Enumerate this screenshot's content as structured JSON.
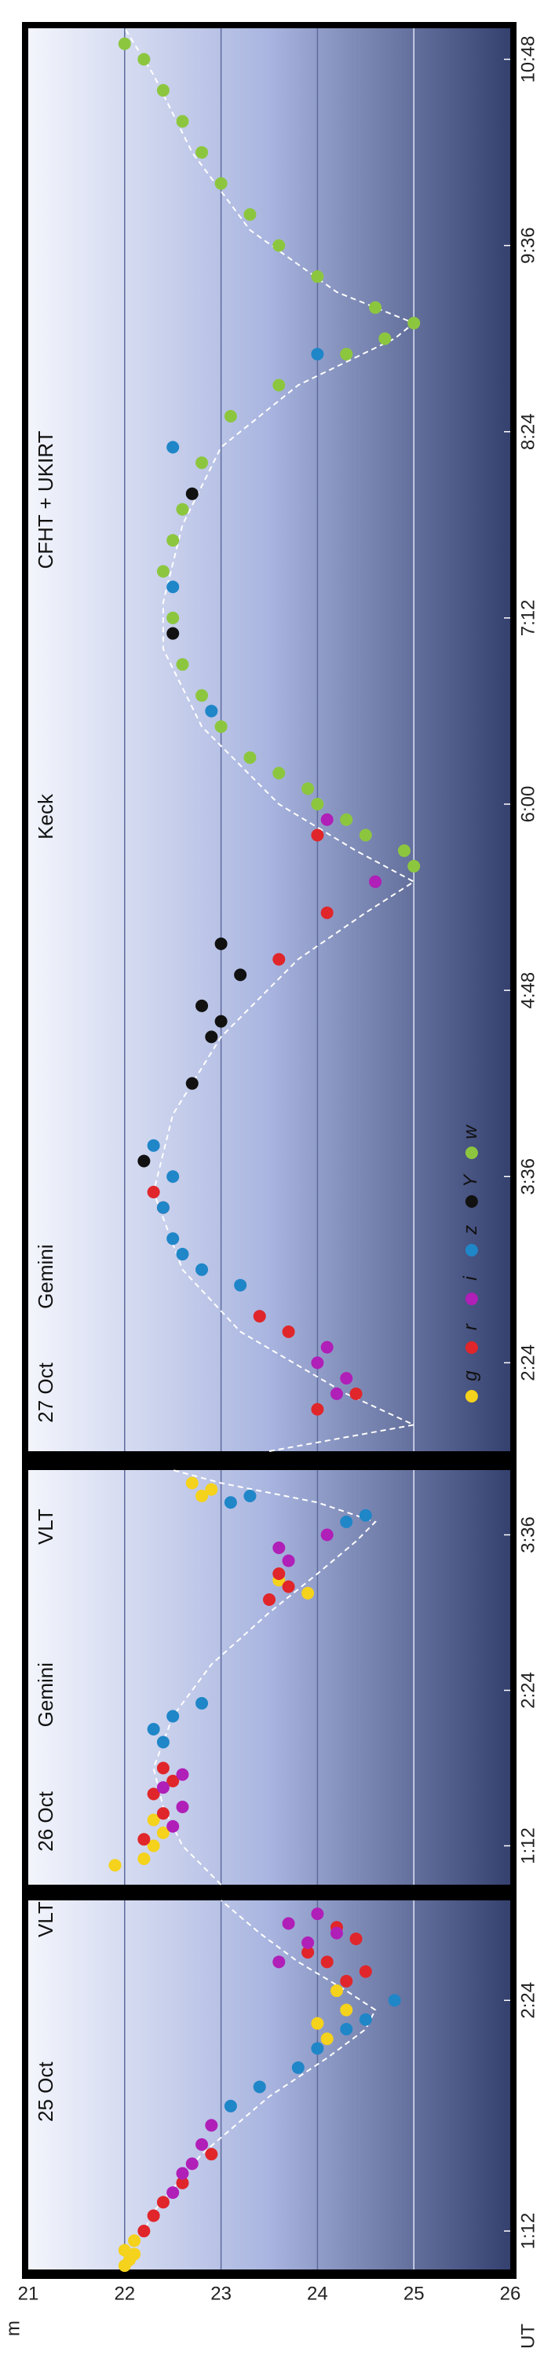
{
  "shared_axes": {
    "ylabel": "m",
    "xlabel": "UT",
    "ylim": [
      21,
      26
    ],
    "yticks": [
      21,
      22,
      23,
      24,
      25,
      26
    ],
    "grid": true
  },
  "chart_data": [
    {
      "type": "scatter",
      "annotations": [
        "25 Oct",
        "VLT"
      ],
      "xlim": [
        1.0,
        2.92
      ],
      "xticks": [
        {
          "value": 1.2,
          "label": "1:12"
        },
        {
          "value": 2.4,
          "label": "2:24"
        }
      ],
      "curve": {
        "x": [
          1.0,
          1.3,
          1.6,
          1.9,
          2.1,
          2.25,
          2.35,
          2.45,
          2.6,
          2.75,
          2.92
        ],
        "values": [
          22.0,
          22.3,
          22.8,
          23.5,
          24.1,
          24.5,
          24.6,
          24.3,
          23.8,
          23.4,
          23.0
        ]
      },
      "series": [
        {
          "name": "g",
          "color": "#f5d21b",
          "x": [
            1.02,
            1.05,
            1.08,
            1.1,
            1.15,
            2.2,
            2.28,
            2.35,
            2.45
          ],
          "values": [
            22.0,
            22.05,
            22.1,
            22.0,
            22.1,
            24.1,
            24.0,
            24.3,
            24.2
          ]
        },
        {
          "name": "r",
          "color": "#e0262a",
          "x": [
            1.2,
            1.28,
            1.35,
            1.45,
            1.6,
            2.5,
            2.55,
            2.6,
            2.65,
            2.72,
            2.78
          ],
          "values": [
            22.2,
            22.3,
            22.4,
            22.6,
            22.9,
            24.3,
            24.5,
            24.1,
            23.9,
            24.4,
            24.2
          ]
        },
        {
          "name": "i",
          "color": "#b01fb7",
          "x": [
            1.4,
            1.5,
            1.55,
            1.65,
            1.75,
            2.6,
            2.7,
            2.75,
            2.8,
            2.85
          ],
          "values": [
            22.5,
            22.6,
            22.7,
            22.8,
            22.9,
            23.6,
            23.9,
            24.2,
            23.7,
            24.0
          ]
        },
        {
          "name": "z",
          "color": "#1f86c8",
          "x": [
            1.85,
            1.95,
            2.05,
            2.15,
            2.25,
            2.3,
            2.4
          ],
          "values": [
            23.1,
            23.4,
            23.8,
            24.0,
            24.3,
            24.5,
            24.8
          ]
        }
      ]
    },
    {
      "type": "scatter",
      "annotations": [
        "26 Oct",
        "Gemini",
        "VLT"
      ],
      "xlim": [
        0.9,
        4.1
      ],
      "xticks": [
        {
          "value": 1.2,
          "label": "1:12"
        },
        {
          "value": 2.4,
          "label": "2:24"
        },
        {
          "value": 3.6,
          "label": "3:36"
        }
      ],
      "curve": {
        "x": [
          0.9,
          1.2,
          1.5,
          1.8,
          2.2,
          2.6,
          3.0,
          3.3,
          3.55,
          3.7,
          3.85,
          4.0,
          4.1
        ],
        "values": [
          23.0,
          22.6,
          22.4,
          22.3,
          22.5,
          22.9,
          23.5,
          24.0,
          24.4,
          24.6,
          24.0,
          23.0,
          22.5
        ]
      },
      "series": [
        {
          "name": "g",
          "color": "#f5d21b",
          "x": [
            1.05,
            1.1,
            1.2,
            1.3,
            1.4,
            3.15,
            3.25,
            3.9,
            3.95,
            4.0
          ],
          "values": [
            21.9,
            22.2,
            22.3,
            22.4,
            22.3,
            23.9,
            23.6,
            22.8,
            22.9,
            22.7
          ]
        },
        {
          "name": "r",
          "color": "#e0262a",
          "x": [
            1.25,
            1.45,
            1.6,
            1.7,
            1.8,
            3.1,
            3.2,
            3.3
          ],
          "values": [
            22.2,
            22.4,
            22.3,
            22.5,
            22.4,
            23.5,
            23.7,
            23.6
          ]
        },
        {
          "name": "i",
          "color": "#b01fb7",
          "x": [
            1.35,
            1.5,
            1.65,
            1.75,
            3.4,
            3.5,
            3.6
          ],
          "values": [
            22.5,
            22.6,
            22.4,
            22.6,
            23.7,
            23.6,
            24.1
          ]
        },
        {
          "name": "z",
          "color": "#1f86c8",
          "x": [
            2.0,
            2.1,
            2.2,
            2.3,
            3.7,
            3.75,
            3.85,
            3.9
          ],
          "values": [
            22.4,
            22.3,
            22.5,
            22.8,
            24.3,
            24.5,
            23.1,
            23.3
          ]
        }
      ]
    },
    {
      "type": "scatter",
      "annotations": [
        "27 Oct",
        "Gemini",
        "Keck",
        "CFHT + UKIRT"
      ],
      "xlim": [
        1.83,
        11.0
      ],
      "xticks": [
        {
          "value": 2.4,
          "label": "2:24"
        },
        {
          "value": 3.6,
          "label": "3:36"
        },
        {
          "value": 4.8,
          "label": "4:48"
        },
        {
          "value": 6.0,
          "label": "6:00"
        },
        {
          "value": 7.2,
          "label": "7:12"
        },
        {
          "value": 8.4,
          "label": "8:24"
        },
        {
          "value": 9.6,
          "label": "9:36"
        },
        {
          "value": 10.8,
          "label": "10:48"
        }
      ],
      "curve": {
        "x": [
          1.83,
          2.0,
          2.2,
          2.6,
          3.0,
          3.5,
          4.0,
          4.5,
          5.0,
          5.3,
          5.5,
          5.7,
          6.0,
          6.5,
          7.0,
          7.3,
          7.8,
          8.3,
          8.7,
          9.0,
          9.1,
          9.3,
          9.7,
          10.2,
          10.7,
          11.0
        ],
        "values": [
          23.5,
          25.0,
          24.3,
          23.2,
          22.6,
          22.3,
          22.5,
          23.0,
          23.8,
          24.5,
          25.0,
          24.4,
          23.6,
          22.8,
          22.4,
          22.4,
          22.6,
          23.0,
          23.8,
          24.8,
          25.0,
          24.2,
          23.3,
          22.7,
          22.3,
          22.0
        ]
      },
      "legend": "bottom-right",
      "series": [
        {
          "name": "g",
          "color": "#f5d21b",
          "x": [],
          "values": []
        },
        {
          "name": "r",
          "color": "#e0262a",
          "x": [
            2.1,
            2.2,
            2.6,
            2.7,
            3.4,
            3.5,
            5.0,
            5.3,
            5.8
          ],
          "values": [
            24.0,
            24.4,
            23.7,
            23.4,
            22.4,
            22.3,
            23.6,
            24.1,
            24.0
          ]
        },
        {
          "name": "i",
          "color": "#b01fb7",
          "x": [
            2.2,
            2.3,
            2.4,
            2.5,
            5.5,
            5.9
          ],
          "values": [
            24.2,
            24.3,
            24.0,
            24.1,
            24.6,
            24.1
          ]
        },
        {
          "name": "z",
          "color": "#1f86c8",
          "x": [
            2.9,
            3.0,
            3.1,
            3.2,
            3.4,
            3.6,
            3.8,
            6.6,
            7.4,
            8.3,
            8.9
          ],
          "values": [
            23.2,
            22.8,
            22.6,
            22.5,
            22.4,
            22.5,
            22.3,
            22.9,
            22.5,
            22.5,
            24.0
          ]
        },
        {
          "name": "Y",
          "color": "#111111",
          "x": [
            3.7,
            4.2,
            4.5,
            4.6,
            4.7,
            4.9,
            5.1,
            7.1,
            8.0
          ],
          "values": [
            22.2,
            22.7,
            22.9,
            23.0,
            22.8,
            23.2,
            23.0,
            22.5,
            22.7
          ]
        },
        {
          "name": "w",
          "color": "#8cc63f",
          "x": [
            5.6,
            5.7,
            5.8,
            5.9,
            6.0,
            6.1,
            6.2,
            6.3,
            6.5,
            6.7,
            6.9,
            7.2,
            7.5,
            7.7,
            7.9,
            8.2,
            8.5,
            8.7,
            8.9,
            9.0,
            9.1,
            9.2,
            9.4,
            9.6,
            9.8,
            10.0,
            10.2,
            10.4,
            10.6,
            10.8,
            10.9
          ],
          "values": [
            25.0,
            24.9,
            24.5,
            24.3,
            24.0,
            23.9,
            23.6,
            23.3,
            23.0,
            22.8,
            22.6,
            22.5,
            22.4,
            22.5,
            22.6,
            22.8,
            23.1,
            23.6,
            24.3,
            24.7,
            25.0,
            24.6,
            24.0,
            23.6,
            23.3,
            23.0,
            22.8,
            22.6,
            22.4,
            22.2,
            22.0
          ]
        }
      ]
    }
  ]
}
